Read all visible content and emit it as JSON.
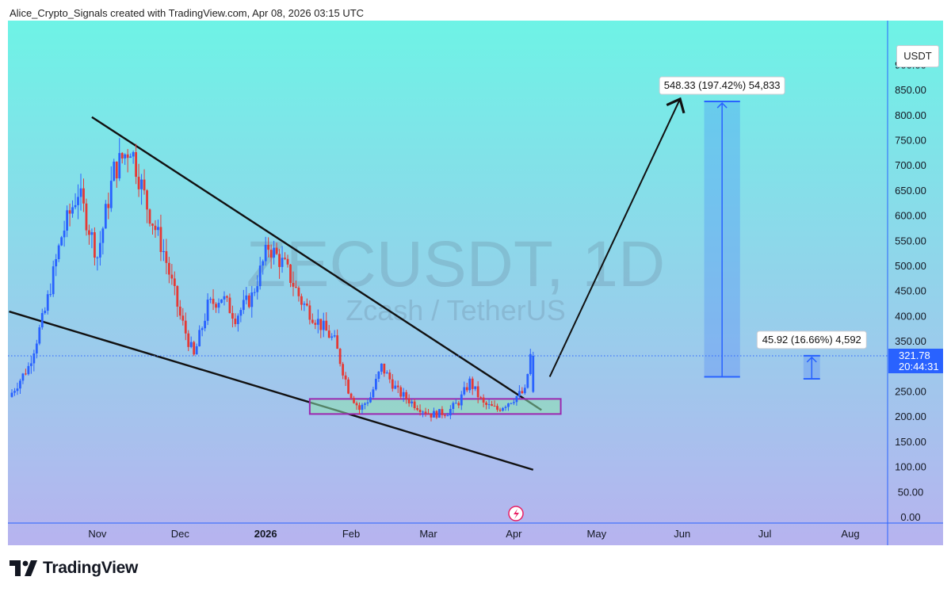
{
  "header": {
    "credit": "Alice_Crypto_Signals created with TradingView.com, Apr 08, 2026 03:15 UTC"
  },
  "chart_data": {
    "type": "candlestick",
    "symbol_watermark": "ZECUSDT, 1D",
    "name_watermark": "Zcash / TetherUS",
    "currency": "USDT",
    "y_axis": {
      "ticks": [
        "900.00",
        "850.00",
        "800.00",
        "750.00",
        "700.00",
        "650.00",
        "600.00",
        "550.00",
        "500.00",
        "450.00",
        "400.00",
        "350.00",
        "300.00",
        "250.00",
        "200.00",
        "150.00",
        "100.00",
        "50.00",
        "0.00"
      ],
      "ylim": [
        0,
        950
      ]
    },
    "x_axis": {
      "ticks": [
        "Nov",
        "Dec",
        "2026",
        "Feb",
        "Mar",
        "Apr",
        "May",
        "Jun",
        "Jul",
        "Aug"
      ]
    },
    "last_price": {
      "value": "321.78",
      "countdown": "20:44:31"
    },
    "colors": {
      "up": "#2962ff",
      "down": "#e53935",
      "bg_top": "#6ef3e6",
      "bg_bottom": "#b7b3ef",
      "zone": "#9c27b0"
    },
    "key_closes": [
      [
        "2025-10-01",
        240
      ],
      [
        "2025-10-08",
        300
      ],
      [
        "2025-10-14",
        410
      ],
      [
        "2025-10-20",
        560
      ],
      [
        "2025-10-26",
        650
      ],
      [
        "2025-11-02",
        520
      ],
      [
        "2025-11-08",
        690
      ],
      [
        "2025-11-14",
        740
      ],
      [
        "2025-11-20",
        620
      ],
      [
        "2025-11-26",
        530
      ],
      [
        "2025-12-02",
        400
      ],
      [
        "2025-12-07",
        320
      ],
      [
        "2025-12-12",
        420
      ],
      [
        "2025-12-17",
        440
      ],
      [
        "2025-12-22",
        400
      ],
      [
        "2025-12-28",
        440
      ],
      [
        "2026-01-03",
        540
      ],
      [
        "2026-01-09",
        500
      ],
      [
        "2026-01-15",
        430
      ],
      [
        "2026-01-21",
        390
      ],
      [
        "2026-01-27",
        350
      ],
      [
        "2026-02-01",
        255
      ],
      [
        "2026-02-05",
        215
      ],
      [
        "2026-02-09",
        240
      ],
      [
        "2026-02-13",
        300
      ],
      [
        "2026-02-19",
        250
      ],
      [
        "2026-02-25",
        225
      ],
      [
        "2026-03-03",
        205
      ],
      [
        "2026-03-09",
        210
      ],
      [
        "2026-03-13",
        230
      ],
      [
        "2026-03-17",
        270
      ],
      [
        "2026-03-22",
        225
      ],
      [
        "2026-03-27",
        215
      ],
      [
        "2026-03-31",
        230
      ],
      [
        "2026-04-04",
        245
      ],
      [
        "2026-04-06",
        250
      ],
      [
        "2026-04-08",
        321.78
      ]
    ],
    "falling_wedge": {
      "upper": [
        [
          "2025-10-30",
          797
        ],
        [
          "2026-04-11",
          214
        ]
      ],
      "lower": [
        [
          "2025-09-30",
          410
        ],
        [
          "2026-04-08",
          95
        ]
      ]
    },
    "support_zone": {
      "from": "2026-01-17",
      "to": "2026-04-18",
      "y_low": 206,
      "y_high": 236
    },
    "arrow": {
      "from": [
        "2026-04-14",
        280
      ],
      "to": [
        "2026-05-31",
        830
      ]
    },
    "measurements": [
      {
        "label": "548.33 (197.42%) 54,833",
        "from_date": "2026-06-09",
        "to_date": "2026-06-22",
        "y_from": 280,
        "y_to": 828
      },
      {
        "label": "45.92 (16.66%) 4,592",
        "from_date": "2026-07-15",
        "to_date": "2026-07-21",
        "y_from": 276,
        "y_to": 322
      }
    ]
  },
  "branding": {
    "logo_text": "TradingView"
  }
}
